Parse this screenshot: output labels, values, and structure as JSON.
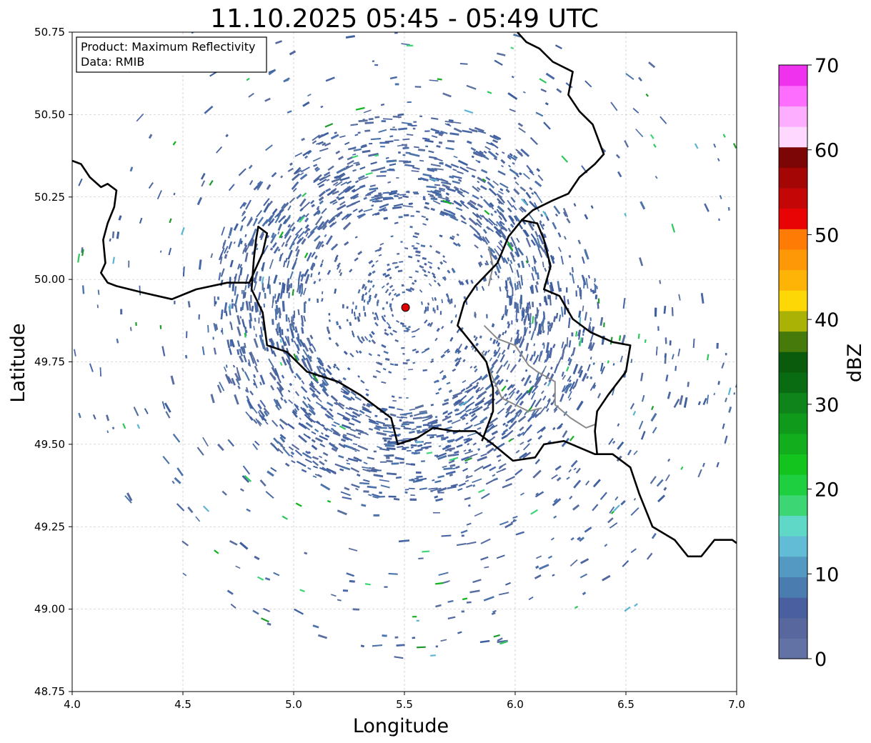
{
  "title": "11.10.2025 05:45 - 05:49 UTC",
  "info_box": {
    "product_line": "Product: Maximum Reflectivity",
    "data_line": "Data: RMIB"
  },
  "axes": {
    "xlabel": "Longitude",
    "ylabel": "Latitude",
    "xlim": [
      4.0,
      7.0
    ],
    "ylim": [
      48.75,
      50.75
    ],
    "x_ticks": [
      4.0,
      4.5,
      5.0,
      5.5,
      6.0,
      6.5,
      7.0
    ],
    "x_tick_labels": [
      "4.0",
      "4.5",
      "5.0",
      "5.5",
      "6.0",
      "6.5",
      "7.0"
    ],
    "y_ticks": [
      48.75,
      49.0,
      49.25,
      49.5,
      49.75,
      50.0,
      50.25,
      50.5,
      50.75
    ],
    "y_tick_labels": [
      "48.75",
      "49.00",
      "49.25",
      "49.50",
      "49.75",
      "50.00",
      "50.25",
      "50.50",
      "50.75"
    ],
    "grid": true
  },
  "radar_site": {
    "lon": 5.505,
    "lat": 49.915
  },
  "colorbar": {
    "label": "dBZ",
    "ticks": [
      0,
      10,
      20,
      30,
      40,
      50,
      60,
      70
    ],
    "tick_labels": [
      "0",
      "10",
      "20",
      "30",
      "40",
      "50",
      "60",
      "70"
    ],
    "range": [
      0,
      70
    ],
    "colors": [
      "#6272a4",
      "#58689e",
      "#4a5fa0",
      "#4a7cb0",
      "#5499c2",
      "#62bcd6",
      "#60d8c8",
      "#3cd674",
      "#1ed040",
      "#14c41e",
      "#12ae1e",
      "#109a1c",
      "#0e841a",
      "#0a6c12",
      "#0a5c0c",
      "#467a0a",
      "#aab206",
      "#fed806",
      "#feb406",
      "#fe9806",
      "#fe7c06",
      "#e80404",
      "#c40606",
      "#a40606",
      "#7c0606",
      "#fed8fe",
      "#feaefe",
      "#fe6efe",
      "#ee32ee"
    ]
  },
  "borders": {
    "black": [
      [
        [
          4.0,
          50.36
        ],
        [
          4.04,
          50.35
        ],
        [
          4.08,
          50.31
        ],
        [
          4.13,
          50.28
        ],
        [
          4.16,
          50.29
        ],
        [
          4.2,
          50.27
        ],
        [
          4.19,
          50.22
        ],
        [
          4.16,
          50.17
        ],
        [
          4.14,
          50.12
        ],
        [
          4.15,
          50.05
        ],
        [
          4.13,
          50.02
        ],
        [
          4.16,
          49.99
        ],
        [
          4.2,
          49.98
        ],
        [
          4.32,
          49.96
        ],
        [
          4.45,
          49.94
        ],
        [
          4.56,
          49.97
        ],
        [
          4.7,
          49.99
        ],
        [
          4.8,
          49.99
        ],
        [
          4.86,
          50.08
        ],
        [
          4.88,
          50.14
        ],
        [
          4.84,
          50.16
        ],
        [
          4.83,
          50.12
        ],
        [
          4.82,
          50.06
        ],
        [
          4.81,
          49.97
        ],
        [
          4.86,
          49.9
        ],
        [
          4.88,
          49.8
        ],
        [
          4.97,
          49.78
        ],
        [
          5.06,
          49.72
        ],
        [
          5.2,
          49.69
        ],
        [
          5.3,
          49.65
        ],
        [
          5.36,
          49.62
        ],
        [
          5.44,
          49.58
        ],
        [
          5.47,
          49.5
        ],
        [
          5.56,
          49.52
        ],
        [
          5.63,
          49.55
        ],
        [
          5.72,
          49.54
        ],
        [
          5.82,
          49.54
        ],
        [
          5.9,
          49.5
        ],
        [
          5.99,
          49.45
        ],
        [
          6.09,
          49.46
        ],
        [
          6.13,
          49.5
        ],
        [
          6.22,
          49.51
        ],
        [
          6.36,
          49.47
        ],
        [
          6.44,
          49.47
        ],
        [
          6.52,
          49.43
        ],
        [
          6.56,
          49.35
        ],
        [
          6.62,
          49.25
        ],
        [
          6.72,
          49.21
        ],
        [
          6.78,
          49.16
        ],
        [
          6.84,
          49.16
        ],
        [
          6.9,
          49.21
        ],
        [
          6.98,
          49.21
        ],
        [
          7.0,
          49.2
        ]
      ],
      [
        [
          5.85,
          49.51
        ],
        [
          5.9,
          49.6
        ],
        [
          5.9,
          49.67
        ],
        [
          5.87,
          49.75
        ],
        [
          5.8,
          49.81
        ],
        [
          5.74,
          49.86
        ],
        [
          5.77,
          49.93
        ],
        [
          5.82,
          49.98
        ],
        [
          5.92,
          50.05
        ],
        [
          5.97,
          50.13
        ],
        [
          6.03,
          50.18
        ],
        [
          6.1,
          50.17
        ],
        [
          6.13,
          50.12
        ],
        [
          6.16,
          50.04
        ],
        [
          6.13,
          49.97
        ],
        [
          6.2,
          49.95
        ],
        [
          6.26,
          49.88
        ],
        [
          6.34,
          49.84
        ],
        [
          6.44,
          49.81
        ],
        [
          6.52,
          49.8
        ],
        [
          6.5,
          49.72
        ],
        [
          6.42,
          49.65
        ],
        [
          6.37,
          49.6
        ],
        [
          6.36,
          49.54
        ],
        [
          6.37,
          49.47
        ]
      ],
      [
        [
          6.03,
          50.18
        ],
        [
          6.08,
          50.21
        ],
        [
          6.17,
          50.24
        ],
        [
          6.24,
          50.26
        ],
        [
          6.29,
          50.31
        ],
        [
          6.36,
          50.35
        ],
        [
          6.4,
          50.38
        ],
        [
          6.35,
          50.47
        ],
        [
          6.29,
          50.51
        ],
        [
          6.24,
          50.56
        ],
        [
          6.26,
          50.63
        ],
        [
          6.17,
          50.66
        ],
        [
          6.11,
          50.7
        ],
        [
          6.05,
          50.72
        ],
        [
          6.01,
          50.75
        ]
      ]
    ],
    "gray": [
      [
        [
          5.86,
          49.86
        ],
        [
          5.92,
          49.82
        ],
        [
          6.0,
          49.8
        ],
        [
          6.06,
          49.74
        ],
        [
          6.1,
          49.72
        ],
        [
          6.18,
          49.69
        ],
        [
          6.18,
          49.62
        ],
        [
          6.25,
          49.58
        ],
        [
          6.32,
          49.55
        ],
        [
          6.36,
          49.56
        ]
      ],
      [
        [
          5.85,
          49.78
        ],
        [
          5.9,
          49.7
        ],
        [
          5.94,
          49.64
        ],
        [
          6.0,
          49.62
        ],
        [
          6.06,
          49.6
        ],
        [
          6.12,
          49.61
        ]
      ],
      [
        [
          5.88,
          49.98
        ],
        [
          5.9,
          50.04
        ],
        [
          5.88,
          50.1
        ]
      ]
    ]
  }
}
